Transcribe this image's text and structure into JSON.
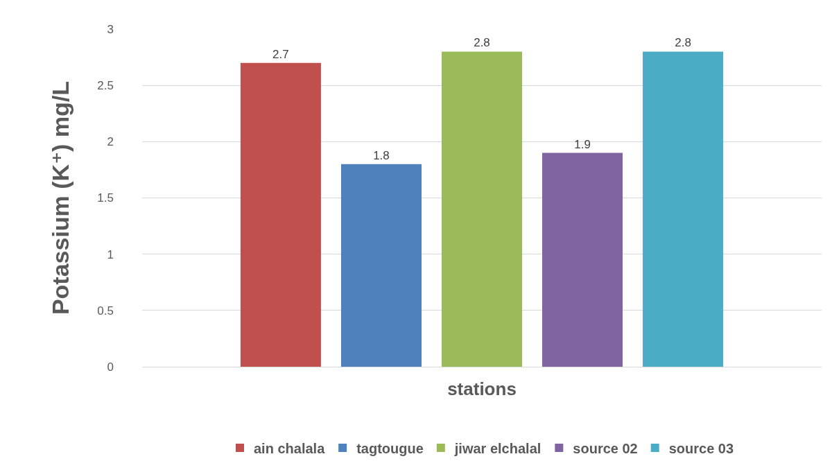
{
  "chart_data": {
    "type": "bar",
    "categories": [
      null
    ],
    "xlabel": "stations",
    "ylabel": "Potassium (K⁺) mg/L",
    "series": [
      {
        "name": "ain chalala",
        "color": "#c0504d",
        "values": [
          2.7
        ]
      },
      {
        "name": "tagtougue",
        "color": "#4f81bd",
        "values": [
          1.8
        ]
      },
      {
        "name": "jiwar elchalal",
        "color": "#9bbb59",
        "values": [
          2.8
        ]
      },
      {
        "name": "source 02",
        "color": "#8064a2",
        "values": [
          1.9
        ]
      },
      {
        "name": "source 03",
        "color": "#4bacc6",
        "values": [
          2.8
        ]
      }
    ],
    "ylim": [
      0,
      3
    ],
    "yticks": [
      0,
      0.5,
      1,
      1.5,
      2,
      2.5,
      3
    ],
    "grid": "y",
    "legend": "bottom",
    "data_labels": true
  }
}
